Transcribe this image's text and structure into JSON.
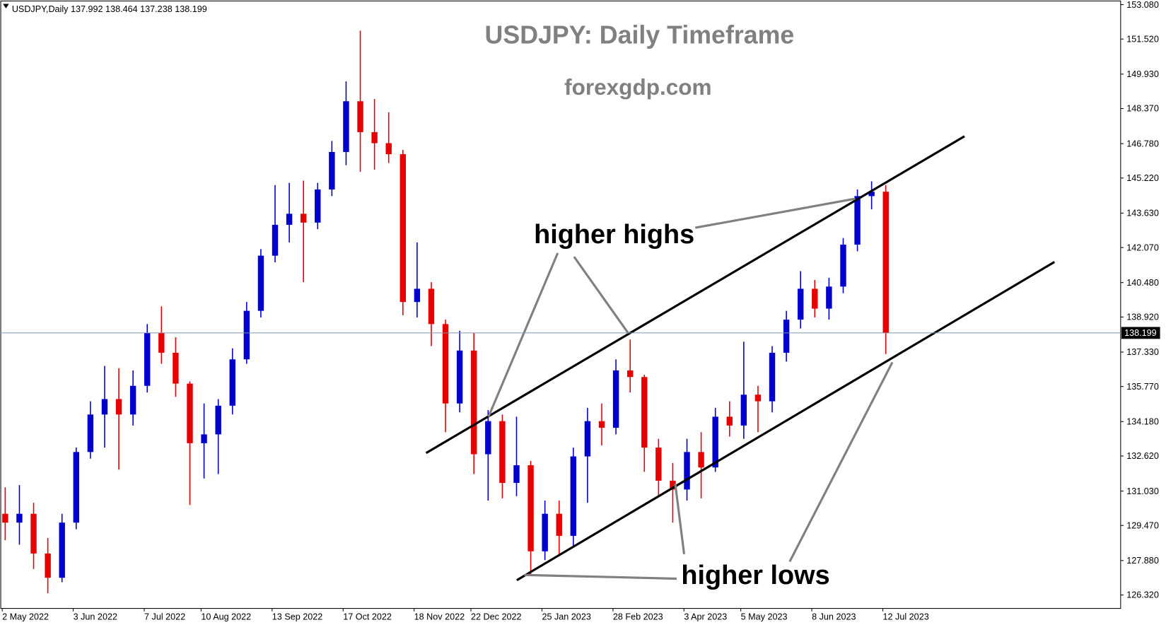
{
  "chart_data": {
    "type": "candlestick",
    "header": "USDJPY,Daily  137.992 138.464 137.238 138.199",
    "title": "USDJPY: Daily Timeframe",
    "subtitle": "forexgdp.com",
    "annotations": [
      "higher highs",
      "higher lows"
    ],
    "categories": [
      "2 May 2022",
      null,
      null,
      null,
      null,
      "3 Jun 2022",
      null,
      null,
      null,
      null,
      "7 Jul 2022",
      null,
      null,
      null,
      "10 Aug 2022",
      null,
      null,
      null,
      null,
      "13 Sep 2022",
      null,
      null,
      null,
      null,
      "17 Oct 2022",
      null,
      null,
      null,
      null,
      "18 Nov 2022",
      null,
      null,
      null,
      "22 Dec 2022",
      null,
      null,
      null,
      null,
      "25 Jan 2023",
      null,
      null,
      null,
      null,
      "28 Feb 2023",
      null,
      null,
      null,
      null,
      "3 Apr 2023",
      null,
      null,
      null,
      "5 May 2023",
      null,
      null,
      null,
      null,
      "8 Jun 2023",
      null,
      null,
      null,
      null,
      "12 Jul 2023"
    ],
    "open": [
      130.0,
      129.6,
      130.0,
      128.2,
      127.1,
      129.6,
      132.8,
      134.5,
      135.2,
      134.5,
      135.8,
      138.2,
      137.3,
      135.9,
      133.2,
      133.6,
      134.9,
      137.0,
      139.2,
      141.7,
      143.1,
      143.6,
      143.2,
      144.7,
      146.4,
      148.7,
      147.3,
      146.8,
      146.3,
      139.6,
      140.2,
      138.6,
      135.0,
      137.4,
      132.7,
      134.2,
      131.4,
      132.2,
      128.3,
      130.0,
      129.0,
      132.6,
      134.2,
      133.9,
      136.5,
      136.2,
      133.0,
      131.5,
      131.1,
      132.8,
      132.1,
      134.4,
      134.0,
      135.4,
      135.1,
      137.3,
      138.8,
      140.2,
      139.3,
      140.3,
      142.2,
      144.4,
      144.6
    ],
    "high": [
      131.2,
      131.3,
      130.5,
      128.9,
      130.0,
      133.0,
      135.1,
      136.7,
      136.6,
      136.5,
      138.6,
      139.4,
      138.0,
      136.0,
      135.0,
      135.2,
      137.5,
      139.6,
      142.0,
      144.9,
      145.0,
      145.1,
      145.0,
      146.9,
      149.6,
      151.9,
      148.8,
      148.2,
      146.5,
      142.3,
      140.5,
      138.8,
      138.3,
      138.2,
      134.7,
      134.5,
      134.4,
      132.4,
      130.6,
      130.6,
      133.0,
      134.8,
      135.0,
      137.0,
      137.9,
      136.3,
      133.4,
      132.3,
      133.4,
      133.7,
      134.8,
      135.1,
      137.8,
      135.8,
      137.6,
      139.2,
      141.0,
      140.6,
      140.7,
      142.5,
      144.7,
      145.07,
      144.9
    ],
    "low": [
      128.8,
      128.6,
      127.5,
      126.4,
      126.9,
      129.3,
      132.5,
      133.0,
      132.0,
      134.0,
      135.5,
      136.8,
      135.3,
      130.4,
      131.6,
      131.8,
      134.5,
      136.8,
      138.9,
      141.4,
      142.3,
      140.5,
      142.9,
      144.4,
      145.8,
      145.5,
      145.6,
      145.9,
      139.0,
      138.9,
      137.6,
      133.7,
      134.6,
      131.8,
      130.6,
      130.7,
      130.8,
      127.2,
      127.9,
      128.1,
      128.5,
      130.5,
      133.1,
      133.6,
      135.5,
      131.9,
      130.8,
      129.6,
      130.6,
      130.7,
      131.9,
      133.5,
      133.4,
      133.7,
      134.6,
      136.9,
      138.4,
      138.9,
      138.8,
      140.0,
      141.9,
      143.8,
      137.24
    ],
    "close": [
      129.6,
      130.0,
      128.2,
      127.1,
      129.6,
      132.8,
      134.5,
      135.2,
      134.5,
      135.8,
      138.2,
      137.3,
      135.9,
      133.2,
      133.6,
      134.9,
      137.0,
      139.2,
      141.7,
      143.1,
      143.6,
      143.2,
      144.7,
      146.4,
      148.7,
      147.3,
      146.8,
      146.3,
      139.6,
      140.2,
      138.6,
      135.0,
      137.4,
      132.7,
      134.2,
      131.4,
      132.2,
      128.3,
      130.0,
      129.0,
      132.6,
      134.2,
      133.9,
      136.5,
      136.2,
      133.0,
      131.5,
      131.1,
      132.8,
      132.1,
      134.4,
      134.0,
      135.4,
      135.1,
      137.3,
      138.8,
      140.2,
      139.3,
      140.3,
      142.2,
      144.4,
      144.6,
      138.199
    ],
    "up_color": "#0000cd",
    "down_color": "#e60000",
    "last_price": 138.199,
    "ylim": [
      125.71,
      153.28
    ],
    "yticks": [
      {
        "value": 126.32,
        "label": "126.320"
      },
      {
        "value": 127.88,
        "label": "127.880"
      },
      {
        "value": 129.47,
        "label": "129.470"
      },
      {
        "value": 131.03,
        "label": "131.030"
      },
      {
        "value": 132.62,
        "label": "132.620"
      },
      {
        "value": 134.18,
        "label": "134.180"
      },
      {
        "value": 135.77,
        "label": "135.770"
      },
      {
        "value": 137.33,
        "label": "137.330"
      },
      {
        "value": 138.92,
        "label": "138.920"
      },
      {
        "value": 140.48,
        "label": "140.480"
      },
      {
        "value": 142.07,
        "label": "142.070"
      },
      {
        "value": 143.63,
        "label": "143.630"
      },
      {
        "value": 145.22,
        "label": "145.220"
      },
      {
        "value": 146.78,
        "label": "146.780"
      },
      {
        "value": 148.37,
        "label": "148.370"
      },
      {
        "value": 149.93,
        "label": "149.930"
      },
      {
        "value": 151.52,
        "label": "151.520"
      },
      {
        "value": 153.08,
        "label": "153.080"
      }
    ]
  }
}
